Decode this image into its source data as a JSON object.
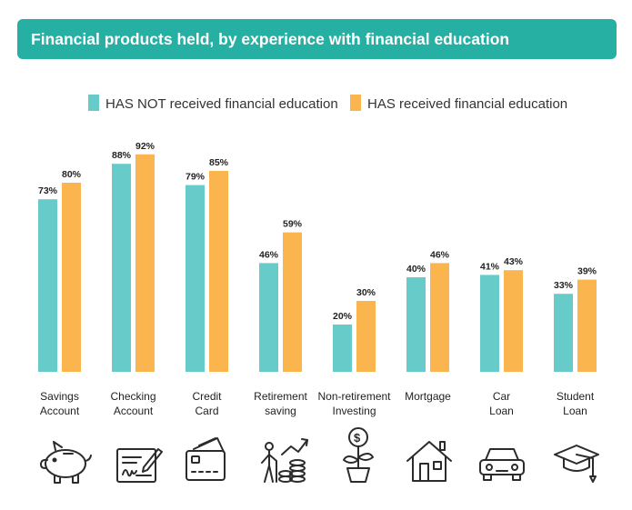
{
  "title": "Financial products held, by experience with financial education",
  "colors": {
    "title_bg": "#26afa3",
    "not_received": "#66cbc9",
    "received": "#fbb54e"
  },
  "legend": {
    "not_received": "HAS NOT received financial education",
    "received": "HAS received financial education"
  },
  "chart_data": {
    "type": "bar",
    "title": "Financial products held, by experience with financial education",
    "categories": [
      [
        "Savings",
        "Account"
      ],
      [
        "Checking",
        "Account"
      ],
      [
        "Credit",
        "Card"
      ],
      [
        "Retirement",
        "saving"
      ],
      [
        "Non-retirement",
        "Investing"
      ],
      [
        "Mortgage"
      ],
      [
        "Car",
        "Loan"
      ],
      [
        "Student",
        "Loan"
      ]
    ],
    "series": [
      {
        "name": "HAS NOT received financial education",
        "values": [
          73,
          88,
          79,
          46,
          20,
          40,
          41,
          33
        ]
      },
      {
        "name": "HAS received financial education",
        "values": [
          80,
          92,
          85,
          59,
          30,
          46,
          43,
          39
        ]
      }
    ],
    "unit": "%",
    "ylim": [
      0,
      100
    ],
    "legend_position": "top",
    "grid": false
  },
  "icons": [
    "piggy-bank-icon",
    "check-icon",
    "credit-card-icon",
    "retirement-icon",
    "investing-plant-icon",
    "house-icon",
    "car-icon",
    "graduation-cap-icon"
  ]
}
